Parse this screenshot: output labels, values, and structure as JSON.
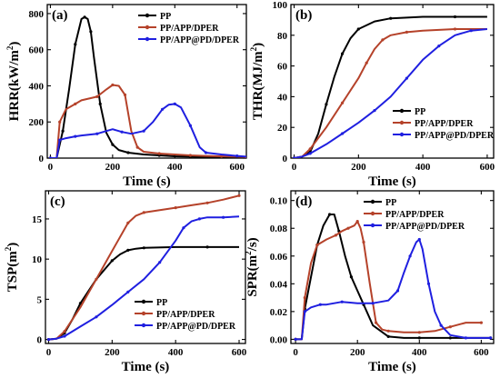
{
  "chart_data": [
    {
      "panel": "(a)",
      "type": "line",
      "xlabel": "Time (s)",
      "ylabel": "HRR(kW/m",
      "ylabel_sup": "2",
      "ylabel_tail": ")",
      "xlim": [
        -10,
        630
      ],
      "ylim": [
        0,
        850
      ],
      "xticks": [
        0,
        200,
        400,
        600
      ],
      "yticks": [
        0,
        200,
        400,
        600,
        800
      ],
      "legend_position": "top-right",
      "series": [
        {
          "name": "PP",
          "color": "#000000",
          "x": [
            0,
            20,
            40,
            60,
            80,
            100,
            110,
            120,
            130,
            140,
            160,
            180,
            200,
            220,
            250,
            300,
            350,
            400,
            450,
            500,
            550,
            600,
            630
          ],
          "y": [
            0,
            0,
            150,
            380,
            630,
            770,
            780,
            770,
            700,
            560,
            300,
            140,
            75,
            45,
            30,
            20,
            15,
            10,
            8,
            6,
            5,
            4,
            3
          ]
        },
        {
          "name": "PP/APP/DPER",
          "color": "#b5422a",
          "x": [
            0,
            20,
            30,
            50,
            80,
            100,
            150,
            180,
            200,
            220,
            240,
            260,
            280,
            300,
            350,
            400,
            450,
            500,
            550,
            600,
            630
          ],
          "y": [
            0,
            0,
            200,
            270,
            300,
            320,
            340,
            380,
            405,
            400,
            350,
            150,
            60,
            35,
            25,
            20,
            15,
            12,
            10,
            8,
            6
          ]
        },
        {
          "name": "PP/APP@PD/DPER",
          "color": "#1f1fe0",
          "x": [
            0,
            20,
            30,
            50,
            80,
            100,
            150,
            200,
            230,
            260,
            300,
            330,
            360,
            380,
            400,
            420,
            450,
            480,
            500,
            550,
            600,
            630
          ],
          "y": [
            0,
            0,
            100,
            110,
            120,
            125,
            135,
            160,
            145,
            135,
            150,
            200,
            270,
            295,
            300,
            280,
            180,
            60,
            30,
            20,
            12,
            8
          ]
        }
      ]
    },
    {
      "panel": "(b)",
      "type": "line",
      "xlabel": "Time (s)",
      "ylabel": "THR(MJ/m",
      "ylabel_sup": "2",
      "ylabel_tail": ")",
      "xlim": [
        -10,
        620
      ],
      "ylim": [
        0,
        100
      ],
      "xticks": [
        0,
        200,
        400,
        600
      ],
      "yticks": [
        0,
        20,
        40,
        60,
        80,
        100
      ],
      "legend_position": "bottom-right",
      "series": [
        {
          "name": "PP",
          "color": "#000000",
          "x": [
            0,
            25,
            50,
            75,
            100,
            125,
            150,
            175,
            200,
            250,
            300,
            400,
            500,
            600
          ],
          "y": [
            0,
            1,
            4,
            16,
            35,
            53,
            68,
            78,
            84,
            89,
            91,
            92,
            92,
            92
          ]
        },
        {
          "name": "PP/APP/DPER",
          "color": "#b5422a",
          "x": [
            0,
            25,
            50,
            100,
            150,
            200,
            225,
            250,
            275,
            300,
            350,
            400,
            500,
            600
          ],
          "y": [
            0,
            1,
            6,
            20,
            36,
            52,
            62,
            71,
            77,
            80,
            82,
            83,
            84,
            84
          ]
        },
        {
          "name": "PP/APP@PD/DPER",
          "color": "#1f1fe0",
          "x": [
            0,
            25,
            50,
            100,
            150,
            200,
            250,
            300,
            350,
            400,
            450,
            500,
            550,
            600
          ],
          "y": [
            0,
            1,
            3,
            9,
            16,
            23,
            31,
            40,
            52,
            64,
            73,
            80,
            83,
            84
          ]
        }
      ]
    },
    {
      "panel": "(c)",
      "type": "line",
      "xlabel": "Time (s)",
      "ylabel": "TSP(m",
      "ylabel_sup": "2",
      "ylabel_tail": ")",
      "xlim": [
        -10,
        620
      ],
      "ylim": [
        -0.5,
        18.5
      ],
      "xticks": [
        0,
        200,
        400,
        600
      ],
      "yticks": [
        0,
        5,
        10,
        15
      ],
      "legend_position": "bottom-right",
      "series": [
        {
          "name": "PP",
          "color": "#000000",
          "x": [
            0,
            25,
            50,
            75,
            100,
            150,
            200,
            225,
            250,
            275,
            300,
            400,
            500,
            600
          ],
          "y": [
            0,
            0.1,
            0.8,
            2.5,
            4.5,
            7.5,
            9.8,
            10.6,
            11.1,
            11.3,
            11.4,
            11.5,
            11.5,
            11.5
          ]
        },
        {
          "name": "PP/APP/DPER",
          "color": "#b5422a",
          "x": [
            0,
            25,
            50,
            100,
            150,
            200,
            250,
            275,
            300,
            350,
            400,
            450,
            500,
            550,
            600
          ],
          "y": [
            0,
            0.1,
            1,
            4,
            7.5,
            11,
            14.5,
            15.4,
            15.8,
            16.1,
            16.4,
            16.7,
            17,
            17.4,
            17.9
          ]
        },
        {
          "name": "PP/APP@PD/DPER",
          "color": "#1f1fe0",
          "x": [
            0,
            25,
            50,
            100,
            150,
            200,
            250,
            300,
            350,
            400,
            425,
            450,
            475,
            500,
            550,
            600
          ],
          "y": [
            0,
            0.1,
            0.4,
            1.6,
            2.8,
            4.3,
            5.9,
            7.5,
            9.6,
            12.3,
            13.9,
            14.7,
            15,
            15.2,
            15.2,
            15.3
          ]
        }
      ]
    },
    {
      "panel": "(d)",
      "type": "line",
      "xlabel": "Time (s)",
      "ylabel": "SPR(m",
      "ylabel_sup": "2",
      "ylabel_tail": "/s)",
      "xlim": [
        -15,
        640
      ],
      "ylim": [
        -0.003,
        0.107
      ],
      "xticks": [
        0,
        200,
        400,
        600
      ],
      "yticks": [
        0.0,
        0.02,
        0.04,
        0.06,
        0.08,
        0.1
      ],
      "legend_position": "top-right",
      "series": [
        {
          "name": "PP",
          "color": "#000000",
          "x": [
            0,
            20,
            30,
            50,
            70,
            90,
            110,
            125,
            140,
            160,
            180,
            200,
            220,
            250,
            300,
            350,
            400,
            450,
            500,
            600,
            630
          ],
          "y": [
            0,
            0,
            0.022,
            0.045,
            0.068,
            0.082,
            0.09,
            0.09,
            0.078,
            0.06,
            0.045,
            0.035,
            0.025,
            0.01,
            0.002,
            0.001,
            0.001,
            0.001,
            0.001,
            0.001,
            0.001
          ]
        },
        {
          "name": "PP/APP/DPER",
          "color": "#b5422a",
          "x": [
            0,
            20,
            30,
            50,
            70,
            100,
            130,
            150,
            170,
            190,
            200,
            210,
            220,
            240,
            260,
            280,
            300,
            350,
            400,
            450,
            500,
            550,
            600
          ],
          "y": [
            0,
            0,
            0.03,
            0.055,
            0.068,
            0.072,
            0.075,
            0.078,
            0.08,
            0.082,
            0.085,
            0.08,
            0.07,
            0.04,
            0.012,
            0.007,
            0.006,
            0.005,
            0.005,
            0.006,
            0.009,
            0.012,
            0.012
          ]
        },
        {
          "name": "PP/APP@PD/DPER",
          "color": "#1f1fe0",
          "x": [
            0,
            20,
            30,
            50,
            80,
            100,
            150,
            200,
            250,
            300,
            330,
            350,
            370,
            390,
            400,
            410,
            430,
            450,
            470,
            500,
            550,
            600,
            630
          ],
          "y": [
            0,
            0,
            0.02,
            0.023,
            0.025,
            0.025,
            0.027,
            0.026,
            0.026,
            0.028,
            0.035,
            0.048,
            0.06,
            0.07,
            0.072,
            0.065,
            0.04,
            0.02,
            0.01,
            0.003,
            0.001,
            0.001,
            0.001
          ]
        }
      ]
    }
  ]
}
